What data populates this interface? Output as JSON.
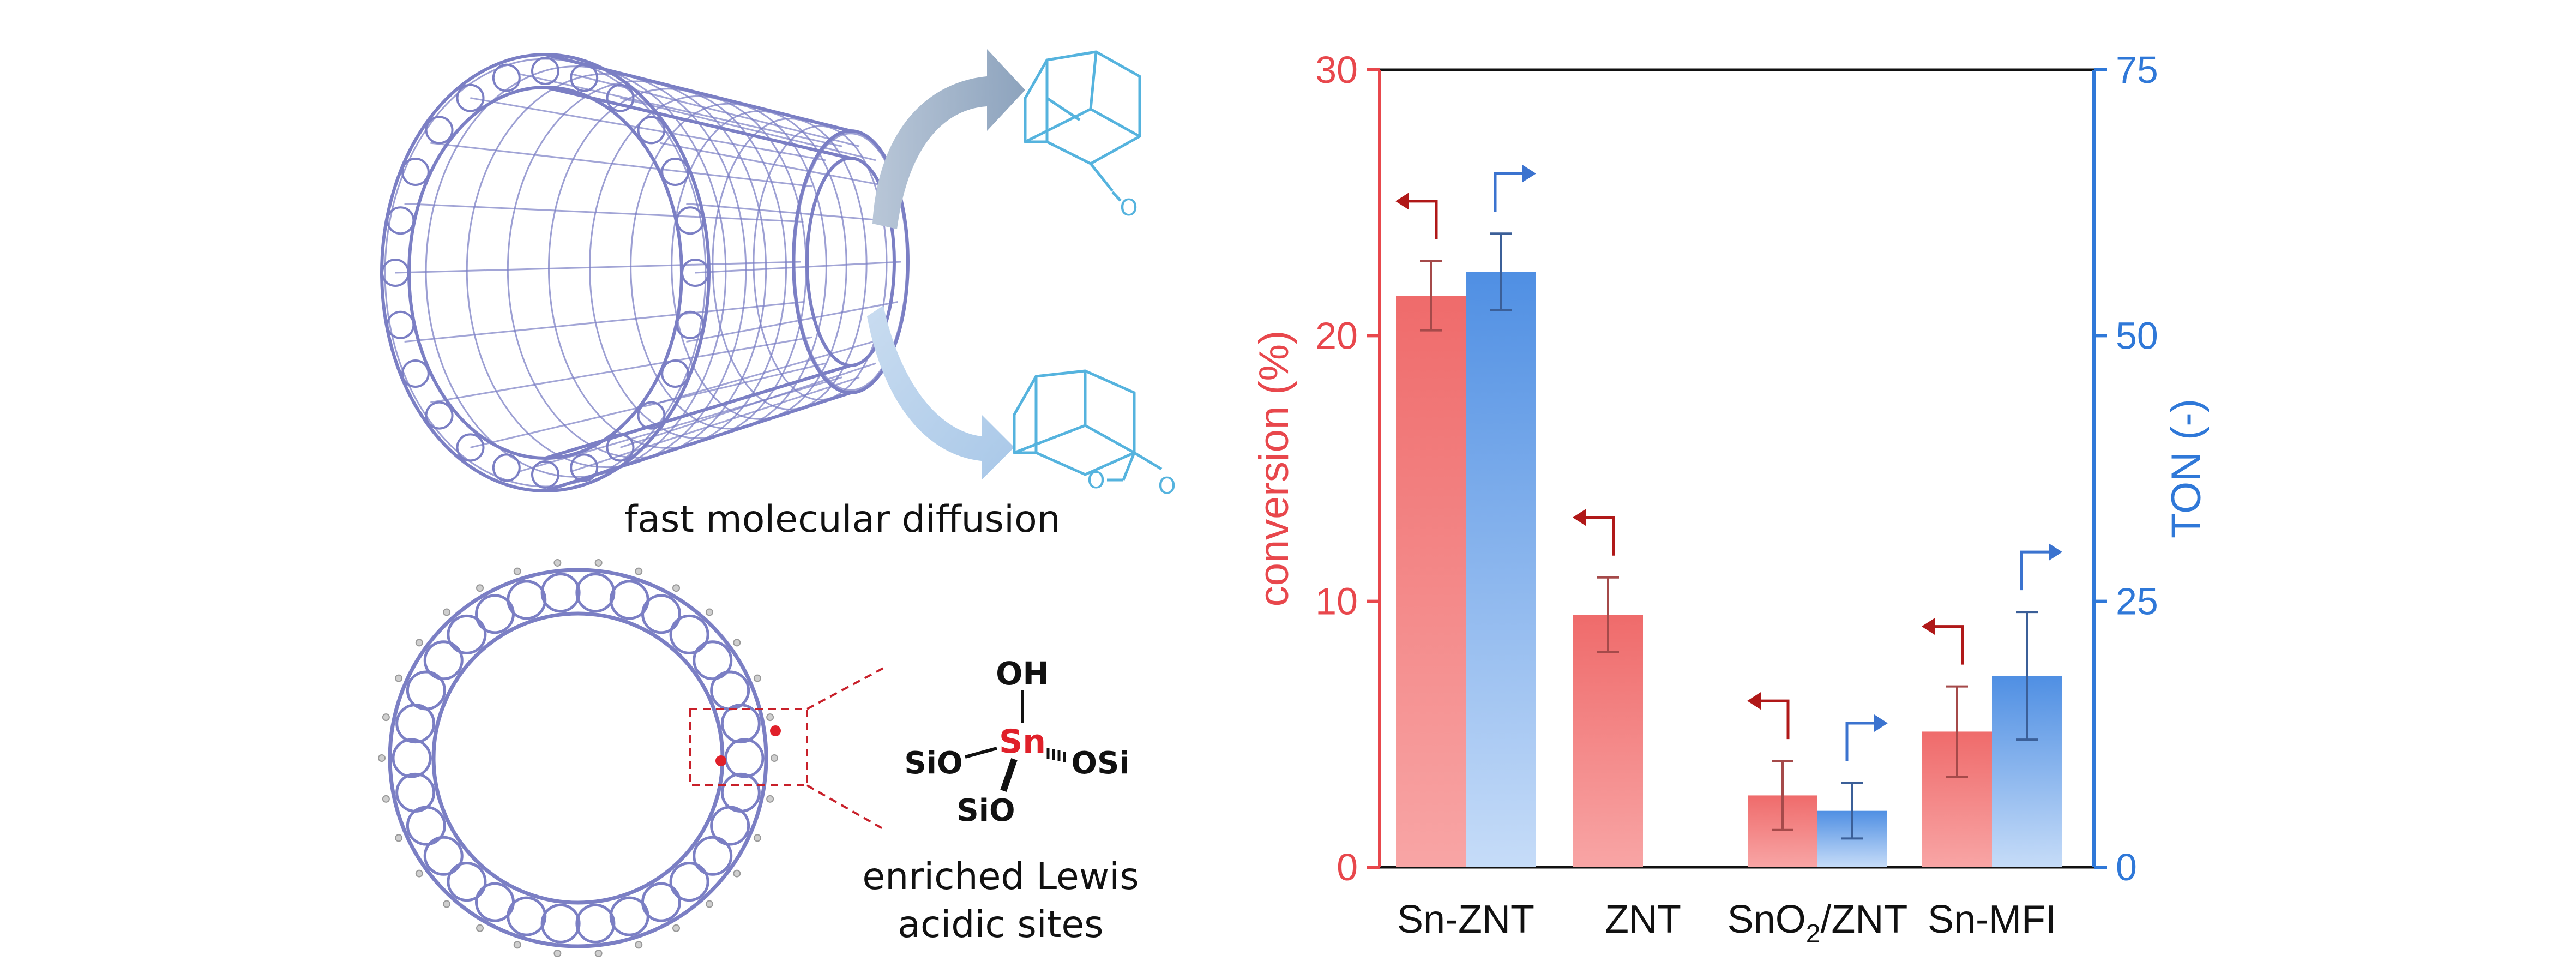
{
  "illustration": {
    "caption_top": "fast molecular diffusion",
    "caption_bottom_line1": "enriched Lewis",
    "caption_bottom_line2": "acidic sites",
    "site_OH": "OH",
    "site_Sn": "Sn",
    "site_SiO_left": "SiO",
    "site_OSi_right": "OSi",
    "site_SiO_bottom": "SiO",
    "ketone_O": "O",
    "lactone_O_ring": "O",
    "lactone_O_carbonyl": "O",
    "framework_color": "#7b7fc4",
    "molecule_color": "#55b3de",
    "sn_color": "#e0202a"
  },
  "chart_data": {
    "type": "bar",
    "categories": [
      "Sn-ZNT",
      "ZNT",
      "SnO2/ZNT",
      "Sn-MFI"
    ],
    "category_display": [
      {
        "main": "Sn-ZNT",
        "sub": "",
        "rest": ""
      },
      {
        "main": "ZNT",
        "sub": "",
        "rest": ""
      },
      {
        "main": "SnO",
        "sub": "2",
        "rest": "/ZNT"
      },
      {
        "main": "Sn-MFI",
        "sub": "",
        "rest": ""
      }
    ],
    "series": [
      {
        "name": "conversion",
        "axis": "left",
        "color": "#ef6b6b",
        "values": [
          21.5,
          9.5,
          2.7,
          5.1
        ],
        "errors": [
          1.3,
          1.4,
          1.3,
          1.7
        ]
      },
      {
        "name": "TON",
        "axis": "right",
        "color": "#4f8fe3",
        "values": [
          56,
          null,
          5.3,
          18
        ],
        "errors": [
          3.6,
          null,
          2.6,
          6
        ]
      }
    ],
    "ylabel": "conversion (%)",
    "ylabel_right": "TON (-)",
    "ylim": [
      0,
      30
    ],
    "ylim_right": [
      0,
      75
    ],
    "yticks": [
      "0",
      "10",
      "20",
      "30"
    ],
    "yticks_right": [
      "0",
      "25",
      "50",
      "75"
    ],
    "left_axis_color": "#e8474c",
    "right_axis_color": "#2f78d8",
    "arrow_left_color": "#b01818",
    "arrow_right_color": "#3b73cf",
    "grid": false
  }
}
